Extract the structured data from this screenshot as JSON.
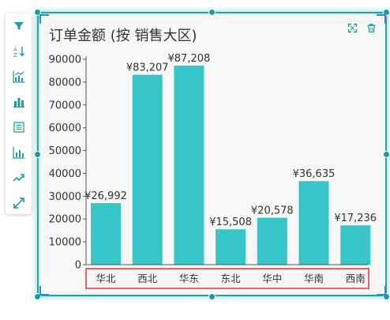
{
  "toolbar": {
    "items": [
      {
        "icon": "filter-icon"
      },
      {
        "icon": "sort-icon"
      },
      {
        "icon": "combo-chart-icon"
      },
      {
        "icon": "bar-chart-icon"
      },
      {
        "icon": "data-table-icon"
      },
      {
        "icon": "analysis-chart-icon"
      },
      {
        "icon": "trend-line-icon"
      },
      {
        "icon": "expand-icon"
      }
    ]
  },
  "card": {
    "accent_color": "#1fa5a8",
    "buttons": [
      {
        "icon": "fullscreen-icon"
      },
      {
        "icon": "delete-icon"
      }
    ]
  },
  "chart_data": {
    "type": "bar",
    "title": "订单金额 (按 销售大区)",
    "categories": [
      "华北",
      "西北",
      "华东",
      "东北",
      "华中",
      "华南",
      "西南"
    ],
    "values": [
      26992,
      83207,
      87208,
      15508,
      20578,
      36635,
      17236
    ],
    "data_labels": [
      "¥26,992",
      "¥83,207",
      "¥87,208",
      "¥15,508",
      "¥20,578",
      "¥36,635",
      "¥17,236"
    ],
    "y_ticks": [
      0,
      10000,
      20000,
      30000,
      40000,
      50000,
      60000,
      70000,
      80000,
      90000
    ],
    "ylim": [
      0,
      90000
    ],
    "bar_color": "#36c6c8",
    "highlight_color": "#e04040",
    "grid": false,
    "xlabel": "",
    "ylabel": ""
  }
}
